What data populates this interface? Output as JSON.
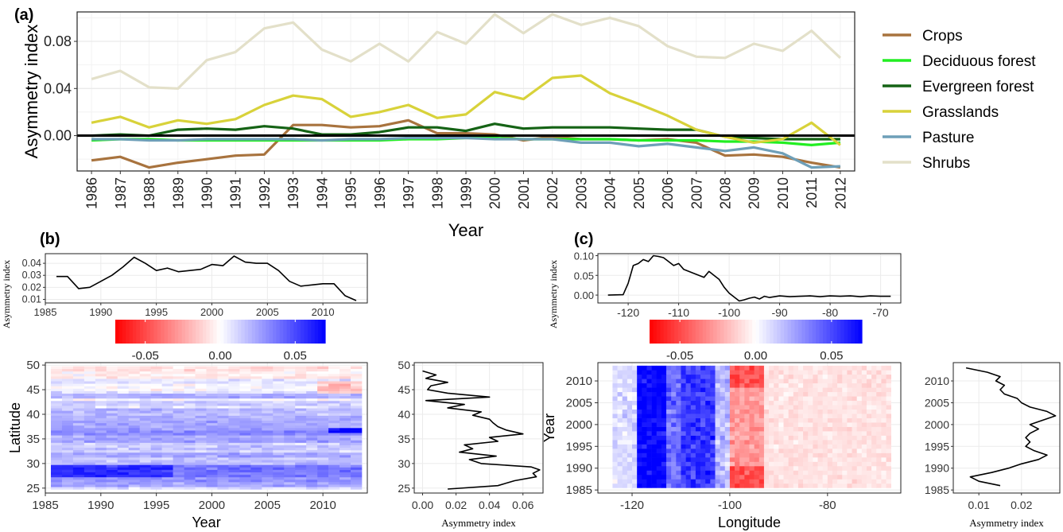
{
  "chart_data": [
    {
      "panel": "(a)",
      "type": "line",
      "xlabel": "Year",
      "ylabel": "Asymmetry index",
      "ylim": [
        -0.03,
        0.105
      ],
      "yticks": [
        "0.00",
        "0.04",
        "0.08"
      ],
      "grid": true,
      "legend_position": "right",
      "categories": [
        1986,
        1987,
        1988,
        1989,
        1990,
        1991,
        1992,
        1993,
        1994,
        1995,
        1996,
        1997,
        1998,
        1999,
        2000,
        2001,
        2002,
        2003,
        2004,
        2005,
        2006,
        2007,
        2008,
        2009,
        2010,
        2011,
        2012
      ],
      "series": [
        {
          "name": "Crops",
          "color": "#a8733e",
          "values": [
            -0.021,
            -0.018,
            -0.027,
            -0.023,
            -0.02,
            -0.017,
            -0.016,
            0.009,
            0.009,
            0.007,
            0.008,
            0.013,
            0.002,
            0.002,
            0.001,
            -0.004,
            -0.001,
            -0.003,
            -0.003,
            -0.004,
            -0.003,
            -0.006,
            -0.017,
            -0.016,
            -0.018,
            -0.023,
            -0.027
          ]
        },
        {
          "name": "Deciduous forest",
          "color": "#22ee22",
          "values": [
            -0.004,
            -0.003,
            -0.003,
            -0.004,
            -0.004,
            -0.004,
            -0.004,
            -0.004,
            -0.004,
            -0.004,
            -0.004,
            -0.003,
            -0.003,
            -0.002,
            -0.002,
            -0.003,
            -0.003,
            -0.003,
            -0.003,
            -0.004,
            -0.004,
            -0.004,
            -0.005,
            -0.005,
            -0.006,
            -0.008,
            -0.006
          ]
        },
        {
          "name": "Evergreen forest",
          "color": "#156315",
          "values": [
            0.0,
            0.001,
            0.0,
            0.005,
            0.006,
            0.005,
            0.008,
            0.006,
            0.001,
            0.001,
            0.003,
            0.007,
            0.007,
            0.004,
            0.01,
            0.006,
            0.007,
            0.007,
            0.007,
            0.006,
            0.005,
            0.005,
            -0.001,
            -0.002,
            -0.003,
            -0.003,
            -0.003
          ]
        },
        {
          "name": "Grasslands",
          "color": "#d8d23a",
          "values": [
            0.011,
            0.016,
            0.007,
            0.013,
            0.01,
            0.014,
            0.026,
            0.034,
            0.031,
            0.016,
            0.02,
            0.026,
            0.015,
            0.018,
            0.037,
            0.031,
            0.049,
            0.051,
            0.036,
            0.027,
            0.017,
            0.005,
            -0.001,
            -0.006,
            -0.003,
            0.011,
            -0.008
          ]
        },
        {
          "name": "Pasture",
          "color": "#6e9fb8",
          "values": [
            -0.003,
            -0.003,
            -0.004,
            -0.004,
            -0.003,
            -0.003,
            -0.003,
            -0.003,
            -0.004,
            -0.003,
            -0.003,
            -0.002,
            -0.002,
            -0.002,
            -0.003,
            -0.003,
            -0.003,
            -0.006,
            -0.006,
            -0.009,
            -0.007,
            -0.01,
            -0.013,
            -0.01,
            -0.015,
            -0.027,
            -0.026
          ]
        },
        {
          "name": "Shrubs",
          "color": "#e3e0c9",
          "values": [
            0.048,
            0.055,
            0.041,
            0.04,
            0.064,
            0.071,
            0.091,
            0.096,
            0.073,
            0.063,
            0.078,
            0.063,
            0.088,
            0.078,
            0.103,
            0.087,
            0.103,
            0.094,
            0.1,
            0.093,
            0.076,
            0.067,
            0.066,
            0.078,
            0.072,
            0.089,
            0.066
          ]
        }
      ]
    },
    {
      "panel": "(b)",
      "type": "heatmap",
      "xlabel": "Year",
      "ylabel": "Latitude",
      "xlim": [
        1985,
        2014
      ],
      "ylim": [
        24,
        50.5
      ],
      "xticks": [
        1985,
        1990,
        1995,
        2000,
        2005,
        2010
      ],
      "yticks": [
        25,
        30,
        35,
        40,
        45,
        50
      ],
      "colorbar": {
        "ticks": [
          "-0.05",
          "0.00",
          "0.05"
        ],
        "low_color": "#ff0000",
        "mid_color": "#ffffff",
        "high_color": "#0000ff"
      },
      "top_profile": {
        "ylabel": "Asymmetry index",
        "xticks": [
          1985,
          1990,
          1995,
          2000,
          2005,
          2010
        ],
        "yticks": [
          0.01,
          0.02,
          0.03,
          0.04
        ],
        "ylim": [
          0.007,
          0.048
        ],
        "x": [
          1986,
          1987,
          1988,
          1989,
          1990,
          1991,
          1992,
          1993,
          1994,
          1995,
          1996,
          1997,
          1998,
          1999,
          2000,
          2001,
          2002,
          2003,
          2004,
          2005,
          2006,
          2007,
          2008,
          2009,
          2010,
          2011,
          2012,
          2013
        ],
        "y": [
          0.029,
          0.029,
          0.019,
          0.02,
          0.025,
          0.03,
          0.037,
          0.045,
          0.04,
          0.034,
          0.036,
          0.033,
          0.034,
          0.035,
          0.039,
          0.038,
          0.046,
          0.041,
          0.04,
          0.04,
          0.034,
          0.025,
          0.021,
          0.022,
          0.023,
          0.023,
          0.013,
          0.009
        ]
      },
      "side_profile": {
        "xlabel": "Asymmetry index",
        "xticks": [
          "0.00",
          "0.02",
          "0.04",
          "0.06"
        ],
        "yticks": [
          25,
          30,
          35,
          40,
          45,
          50
        ],
        "xlim": [
          -0.005,
          0.072
        ],
        "ylim": [
          24,
          50.5
        ],
        "lat": [
          24.8,
          25.5,
          26.5,
          27.3,
          28.0,
          28.7,
          29.3,
          30.0,
          30.8,
          31.5,
          32.3,
          33.0,
          33.8,
          34.5,
          35.3,
          36.0,
          36.8,
          37.5,
          38.3,
          39.0,
          39.8,
          40.5,
          41.3,
          42.0,
          42.8,
          43.5,
          44.3,
          45.0,
          45.8,
          46.5,
          47.3,
          48.0,
          48.8
        ],
        "values": [
          0.015,
          0.045,
          0.055,
          0.068,
          0.066,
          0.07,
          0.065,
          0.035,
          0.028,
          0.044,
          0.022,
          0.03,
          0.025,
          0.045,
          0.04,
          0.06,
          0.05,
          0.045,
          0.042,
          0.04,
          0.03,
          0.035,
          0.015,
          0.025,
          0.002,
          0.04,
          0.015,
          0.003,
          0.005,
          0.015,
          0.002,
          0.008,
          0.0
        ]
      }
    },
    {
      "panel": "(c)",
      "type": "heatmap",
      "xlabel": "Longitude",
      "ylabel": "Year",
      "xlim": [
        -127,
        -65
      ],
      "ylim": [
        1984.3,
        2014.2
      ],
      "xticks": [
        -120,
        -100,
        -80
      ],
      "yticks": [
        1985,
        1990,
        1995,
        2000,
        2005,
        2010
      ],
      "colorbar": {
        "ticks": [
          "-0.05",
          "0.00",
          "0.05"
        ],
        "low_color": "#ff0000",
        "mid_color": "#ffffff",
        "high_color": "#0000ff"
      },
      "top_profile": {
        "ylabel": "Asymmetry index",
        "xticks": [
          -120,
          -110,
          -100,
          -90,
          -80,
          -70
        ],
        "yticks": [
          "0.00",
          "0.05",
          "0.10"
        ],
        "xlim": [
          -126,
          -66
        ],
        "ylim": [
          -0.02,
          0.105
        ],
        "x": [
          -124,
          -121,
          -120,
          -119,
          -118,
          -117,
          -116,
          -115,
          -114,
          -113,
          -112,
          -111,
          -110,
          -109,
          -108,
          -107,
          -106,
          -105,
          -104,
          -103,
          -102,
          -101,
          -100,
          -99,
          -98,
          -97,
          -96,
          -95,
          -94,
          -93,
          -92,
          -91,
          -90,
          -88,
          -86,
          -84,
          -82,
          -80,
          -78,
          -76,
          -74,
          -72,
          -70,
          -68
        ],
        "y": [
          0.0,
          0.001,
          0.03,
          0.075,
          0.08,
          0.09,
          0.085,
          0.1,
          0.098,
          0.095,
          0.085,
          0.075,
          0.08,
          0.065,
          0.06,
          0.055,
          0.05,
          0.045,
          0.06,
          0.05,
          0.04,
          0.02,
          0.005,
          -0.005,
          -0.015,
          -0.012,
          -0.008,
          -0.005,
          -0.01,
          -0.003,
          -0.006,
          -0.004,
          -0.002,
          -0.004,
          -0.003,
          -0.002,
          -0.004,
          -0.002,
          -0.003,
          -0.002,
          -0.004,
          -0.002,
          -0.003,
          -0.003
        ]
      },
      "side_profile": {
        "xlabel": "Asymmetry index",
        "xticks": [
          "0.01",
          "0.02"
        ],
        "yticks": [
          1985,
          1990,
          1995,
          2000,
          2005,
          2010
        ],
        "xlim": [
          0.004,
          0.029
        ],
        "ylim": [
          1984.3,
          2014.2
        ],
        "years": [
          1986,
          1987,
          1988,
          1989,
          1990,
          1991,
          1992,
          1993,
          1994,
          1995,
          1996,
          1997,
          1998,
          1999,
          2000,
          2001,
          2002,
          2003,
          2004,
          2005,
          2006,
          2007,
          2008,
          2009,
          2010,
          2011,
          2012,
          2013
        ],
        "values": [
          0.015,
          0.01,
          0.008,
          0.013,
          0.017,
          0.02,
          0.024,
          0.026,
          0.023,
          0.021,
          0.022,
          0.021,
          0.022,
          0.024,
          0.022,
          0.025,
          0.028,
          0.026,
          0.022,
          0.02,
          0.019,
          0.016,
          0.015,
          0.016,
          0.014,
          0.015,
          0.012,
          0.007
        ]
      }
    }
  ]
}
